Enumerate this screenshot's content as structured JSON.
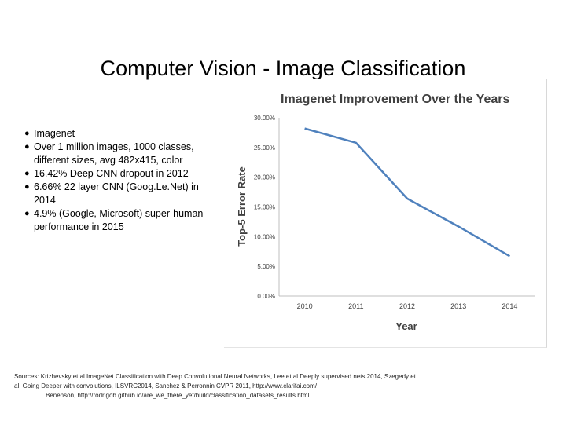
{
  "slide": {
    "title": "Computer Vision - Image Classification"
  },
  "bullets": [
    {
      "text": "Imagenet",
      "bold": true
    },
    {
      "text": "Over 1 million images, 1000 classes, different sizes, avg 482x415, color"
    },
    {
      "text": "16.42% Deep CNN dropout in 2012"
    },
    {
      "text": "6.66% 22 layer CNN (Goog.Le.Net) in 2014"
    },
    {
      "text": "4.9% (Google, Microsoft) super-human performance in 2015"
    }
  ],
  "chart_data": {
    "type": "line",
    "title": "Imagenet Improvement Over the Years",
    "xlabel": "Year",
    "ylabel": "Top-5 Error Rate",
    "categories": [
      "2010",
      "2011",
      "2012",
      "2013",
      "2014"
    ],
    "series": [
      {
        "values": [
          28.2,
          25.8,
          16.4,
          11.7,
          6.7
        ]
      }
    ],
    "ylim": [
      0,
      30
    ],
    "yticks": [
      "0.00%",
      "5.00%",
      "10.00%",
      "15.00%",
      "20.00%",
      "25.00%",
      "30.00%"
    ],
    "grid": false,
    "line_color": "#4f81bd"
  },
  "sources": {
    "line1": "Sources:                Krizhevsky et al ImageNet Classification with Deep Convolutional Neural Networks, Lee et al Deeply supervised nets 2014, Szegedy et",
    "line2": "al, Going Deeper with convolutions, ILSVRC2014, Sanchez & Perronnin CVPR 2011, http://www.clarifai.com/",
    "line3": "Benenson, http://rodrigob.github.io/are_we_there_yet/build/classification_datasets_results.html"
  }
}
